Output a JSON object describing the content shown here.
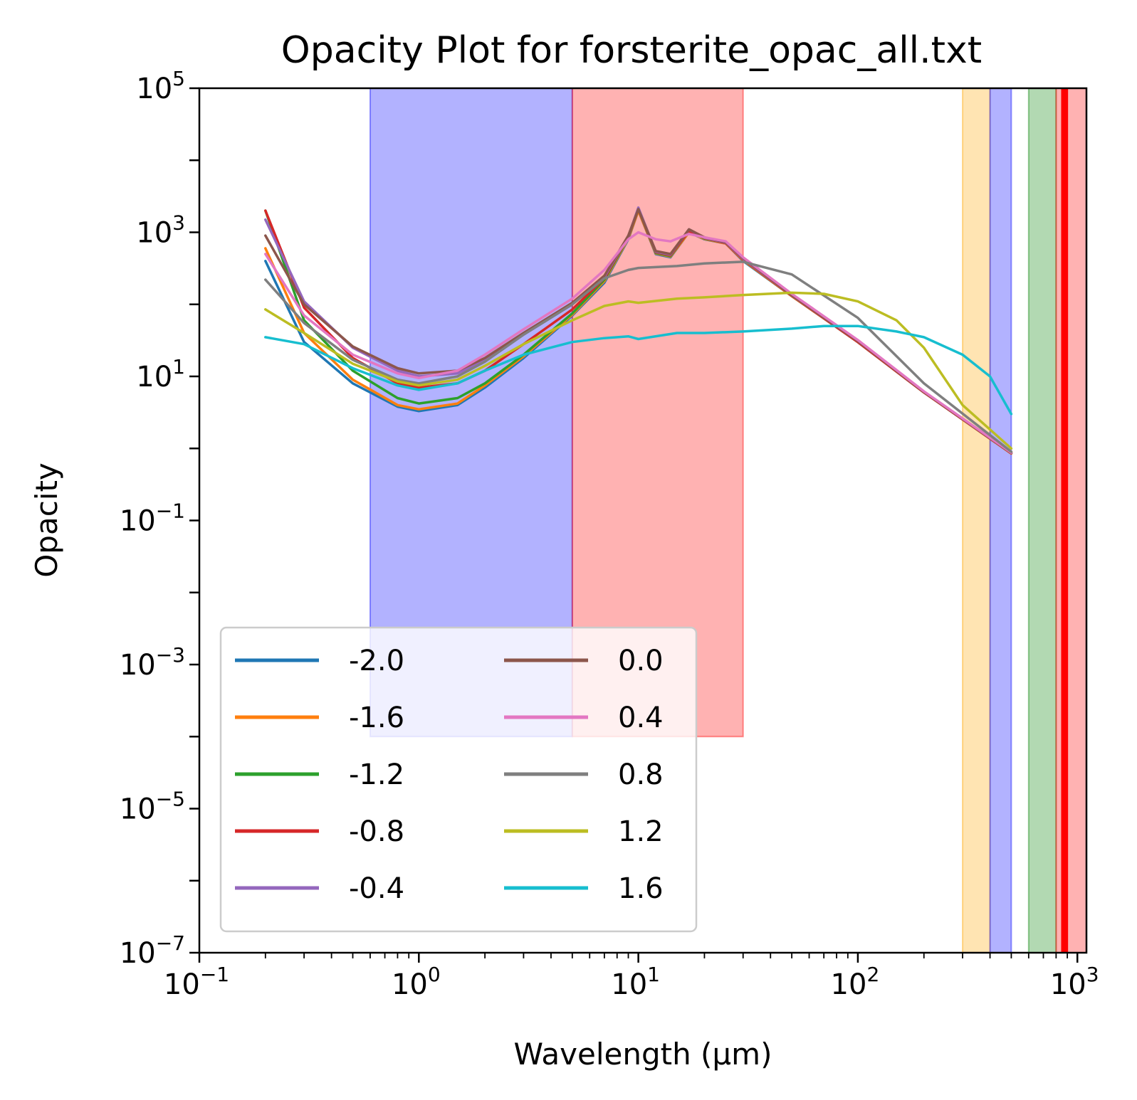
{
  "chart_data": {
    "type": "line",
    "title": "Opacity Plot for forsterite_opac_all.txt",
    "xlabel": "Wavelength (μm)",
    "ylabel": "Opacity",
    "xscale": "log",
    "yscale": "log",
    "xlim": [
      0.1,
      1100
    ],
    "ylim": [
      1e-07,
      100000
    ],
    "x_ticks": [
      {
        "value": 0.1,
        "base": "10",
        "exp": "−1"
      },
      {
        "value": 1,
        "base": "10",
        "exp": "0"
      },
      {
        "value": 10,
        "base": "10",
        "exp": "1"
      },
      {
        "value": 100,
        "base": "10",
        "exp": "2"
      },
      {
        "value": 1000,
        "base": "10",
        "exp": "3"
      }
    ],
    "y_ticks": [
      {
        "value": 1e-07,
        "base": "10",
        "exp": "−7"
      },
      {
        "value": 1e-05,
        "base": "10",
        "exp": "−5"
      },
      {
        "value": 0.001,
        "base": "10",
        "exp": "−3"
      },
      {
        "value": 0.1,
        "base": "10",
        "exp": "−1"
      },
      {
        "value": 10,
        "base": "10",
        "exp": "1"
      },
      {
        "value": 1000,
        "base": "10",
        "exp": "3"
      },
      {
        "value": 100000,
        "base": "10",
        "exp": "5"
      }
    ],
    "grid": false,
    "legend": {
      "placement": "lower-left",
      "columns": 2
    },
    "bands": [
      {
        "x0": 0.6,
        "x1": 5,
        "y0": 0.0001,
        "y1": 100000,
        "color": "#0000ff",
        "alpha": 0.3
      },
      {
        "x0": 5,
        "x1": 30,
        "y0": 0.0001,
        "y1": 100000,
        "color": "#ff0000",
        "alpha": 0.3
      },
      {
        "x0": 300,
        "x1": 400,
        "y0": 1e-07,
        "y1": 100000,
        "color": "#ffa500",
        "alpha": 0.3
      },
      {
        "x0": 400,
        "x1": 500,
        "y0": 1e-07,
        "y1": 100000,
        "color": "#0000ff",
        "alpha": 0.3
      },
      {
        "x0": 600,
        "x1": 800,
        "y0": 1e-07,
        "y1": 100000,
        "color": "#008000",
        "alpha": 0.3
      },
      {
        "x0": 800,
        "x1": 850,
        "y0": 1e-07,
        "y1": 100000,
        "color": "#ff0000",
        "alpha": 0.3
      },
      {
        "x0": 850,
        "x1": 900,
        "y0": 1e-07,
        "y1": 100000,
        "color": "#ff0000",
        "alpha": 1.0
      },
      {
        "x0": 900,
        "x1": 1100,
        "y0": 1e-07,
        "y1": 100000,
        "color": "#ff0000",
        "alpha": 0.3
      }
    ],
    "series": [
      {
        "name": "-2.0",
        "color": "#1f77b4",
        "points": [
          [
            0.2,
            400
          ],
          [
            0.3,
            30
          ],
          [
            0.5,
            8
          ],
          [
            0.8,
            3.8
          ],
          [
            1,
            3.3
          ],
          [
            1.5,
            4
          ],
          [
            2,
            7
          ],
          [
            3,
            18
          ],
          [
            5,
            70
          ],
          [
            7,
            200
          ],
          [
            9,
            800
          ],
          [
            10,
            2000
          ],
          [
            12,
            500
          ],
          [
            14,
            450
          ],
          [
            17,
            1000
          ],
          [
            20,
            800
          ],
          [
            25,
            700
          ],
          [
            30,
            400
          ],
          [
            50,
            130
          ],
          [
            100,
            30
          ],
          [
            200,
            6
          ],
          [
            500,
            0.85
          ]
        ]
      },
      {
        "name": "-1.6",
        "color": "#ff7f0e",
        "points": [
          [
            0.2,
            600
          ],
          [
            0.3,
            40
          ],
          [
            0.5,
            9
          ],
          [
            0.8,
            4
          ],
          [
            1,
            3.5
          ],
          [
            1.5,
            4.2
          ],
          [
            2,
            7.5
          ],
          [
            3,
            19
          ],
          [
            5,
            72
          ],
          [
            7,
            210
          ],
          [
            9,
            820
          ],
          [
            10,
            2000
          ],
          [
            12,
            510
          ],
          [
            14,
            460
          ],
          [
            17,
            1000
          ],
          [
            20,
            810
          ],
          [
            25,
            700
          ],
          [
            30,
            410
          ],
          [
            50,
            130
          ],
          [
            100,
            30
          ],
          [
            200,
            6
          ],
          [
            500,
            0.85
          ]
        ]
      },
      {
        "name": "-1.2",
        "color": "#2ca02c",
        "points": [
          [
            0.2,
            2000
          ],
          [
            0.3,
            60
          ],
          [
            0.5,
            12
          ],
          [
            0.8,
            5
          ],
          [
            1,
            4.2
          ],
          [
            1.5,
            5
          ],
          [
            2,
            8
          ],
          [
            3,
            20
          ],
          [
            5,
            75
          ],
          [
            7,
            220
          ],
          [
            9,
            850
          ],
          [
            10,
            2100
          ],
          [
            12,
            520
          ],
          [
            14,
            470
          ],
          [
            17,
            1050
          ],
          [
            20,
            820
          ],
          [
            25,
            710
          ],
          [
            30,
            420
          ],
          [
            50,
            132
          ],
          [
            100,
            30
          ],
          [
            200,
            6
          ],
          [
            500,
            0.86
          ]
        ]
      },
      {
        "name": "-0.8",
        "color": "#d62728",
        "points": [
          [
            0.2,
            2000
          ],
          [
            0.3,
            90
          ],
          [
            0.5,
            18
          ],
          [
            0.8,
            8
          ],
          [
            1,
            7
          ],
          [
            1.5,
            8
          ],
          [
            2,
            12
          ],
          [
            3,
            28
          ],
          [
            5,
            85
          ],
          [
            7,
            230
          ],
          [
            9,
            870
          ],
          [
            10,
            2100
          ],
          [
            12,
            530
          ],
          [
            14,
            480
          ],
          [
            17,
            1050
          ],
          [
            20,
            830
          ],
          [
            25,
            710
          ],
          [
            30,
            420
          ],
          [
            50,
            132
          ],
          [
            100,
            30
          ],
          [
            200,
            6
          ],
          [
            500,
            0.86
          ]
        ]
      },
      {
        "name": "-0.4",
        "color": "#9467bd",
        "points": [
          [
            0.2,
            1500
          ],
          [
            0.3,
            110
          ],
          [
            0.5,
            25
          ],
          [
            0.8,
            12
          ],
          [
            1,
            10
          ],
          [
            1.5,
            11
          ],
          [
            2,
            17
          ],
          [
            3,
            38
          ],
          [
            5,
            100
          ],
          [
            7,
            240
          ],
          [
            9,
            880
          ],
          [
            10,
            2200
          ],
          [
            12,
            540
          ],
          [
            14,
            490
          ],
          [
            17,
            1100
          ],
          [
            20,
            840
          ],
          [
            25,
            720
          ],
          [
            30,
            430
          ],
          [
            50,
            134
          ],
          [
            100,
            31
          ],
          [
            200,
            6.1
          ],
          [
            500,
            0.87
          ]
        ]
      },
      {
        "name": "0.0",
        "color": "#8c564b",
        "points": [
          [
            0.2,
            900
          ],
          [
            0.3,
            100
          ],
          [
            0.5,
            26
          ],
          [
            0.8,
            13
          ],
          [
            1,
            11
          ],
          [
            1.5,
            12
          ],
          [
            2,
            18
          ],
          [
            3,
            40
          ],
          [
            5,
            105
          ],
          [
            7,
            250
          ],
          [
            9,
            900
          ],
          [
            10,
            2100
          ],
          [
            12,
            550
          ],
          [
            14,
            500
          ],
          [
            17,
            1100
          ],
          [
            20,
            850
          ],
          [
            25,
            730
          ],
          [
            30,
            440
          ],
          [
            50,
            135
          ],
          [
            100,
            31
          ],
          [
            200,
            6.1
          ],
          [
            500,
            0.88
          ]
        ]
      },
      {
        "name": "0.4",
        "color": "#e377c2",
        "points": [
          [
            0.2,
            500
          ],
          [
            0.3,
            70
          ],
          [
            0.5,
            20
          ],
          [
            0.8,
            11
          ],
          [
            1,
            9.5
          ],
          [
            1.5,
            12
          ],
          [
            2,
            20
          ],
          [
            3,
            45
          ],
          [
            5,
            120
          ],
          [
            7,
            300
          ],
          [
            9,
            800
          ],
          [
            10,
            1000
          ],
          [
            12,
            800
          ],
          [
            14,
            750
          ],
          [
            17,
            950
          ],
          [
            20,
            850
          ],
          [
            25,
            750
          ],
          [
            30,
            450
          ],
          [
            50,
            140
          ],
          [
            100,
            32
          ],
          [
            200,
            6.2
          ],
          [
            500,
            0.88
          ]
        ]
      },
      {
        "name": "0.8",
        "color": "#7f7f7f",
        "points": [
          [
            0.2,
            220
          ],
          [
            0.3,
            55
          ],
          [
            0.5,
            17
          ],
          [
            0.8,
            9
          ],
          [
            1,
            8
          ],
          [
            1.5,
            10
          ],
          [
            2,
            16
          ],
          [
            3,
            38
          ],
          [
            5,
            100
          ],
          [
            7,
            230
          ],
          [
            9,
            300
          ],
          [
            10,
            320
          ],
          [
            15,
            340
          ],
          [
            20,
            370
          ],
          [
            30,
            390
          ],
          [
            50,
            260
          ],
          [
            100,
            65
          ],
          [
            200,
            8
          ],
          [
            500,
            0.9
          ]
        ]
      },
      {
        "name": "1.2",
        "color": "#bcbd22",
        "points": [
          [
            0.2,
            85
          ],
          [
            0.3,
            40
          ],
          [
            0.5,
            15
          ],
          [
            0.8,
            8.5
          ],
          [
            1,
            7.5
          ],
          [
            1.5,
            9
          ],
          [
            2,
            14
          ],
          [
            3,
            28
          ],
          [
            5,
            60
          ],
          [
            7,
            95
          ],
          [
            9,
            110
          ],
          [
            10,
            105
          ],
          [
            15,
            120
          ],
          [
            20,
            125
          ],
          [
            30,
            135
          ],
          [
            50,
            145
          ],
          [
            70,
            140
          ],
          [
            100,
            110
          ],
          [
            150,
            60
          ],
          [
            200,
            25
          ],
          [
            300,
            4
          ],
          [
            500,
            1.0
          ]
        ]
      },
      {
        "name": "1.6",
        "color": "#17becf",
        "points": [
          [
            0.2,
            35
          ],
          [
            0.3,
            28
          ],
          [
            0.5,
            13
          ],
          [
            0.8,
            7.5
          ],
          [
            1,
            6.5
          ],
          [
            1.5,
            8
          ],
          [
            2,
            12
          ],
          [
            3,
            20
          ],
          [
            5,
            30
          ],
          [
            7,
            34
          ],
          [
            9,
            36
          ],
          [
            10,
            33
          ],
          [
            15,
            40
          ],
          [
            20,
            40
          ],
          [
            30,
            42
          ],
          [
            50,
            46
          ],
          [
            70,
            50
          ],
          [
            100,
            50
          ],
          [
            150,
            42
          ],
          [
            200,
            35
          ],
          [
            300,
            20
          ],
          [
            400,
            10
          ],
          [
            500,
            3
          ]
        ]
      }
    ]
  }
}
